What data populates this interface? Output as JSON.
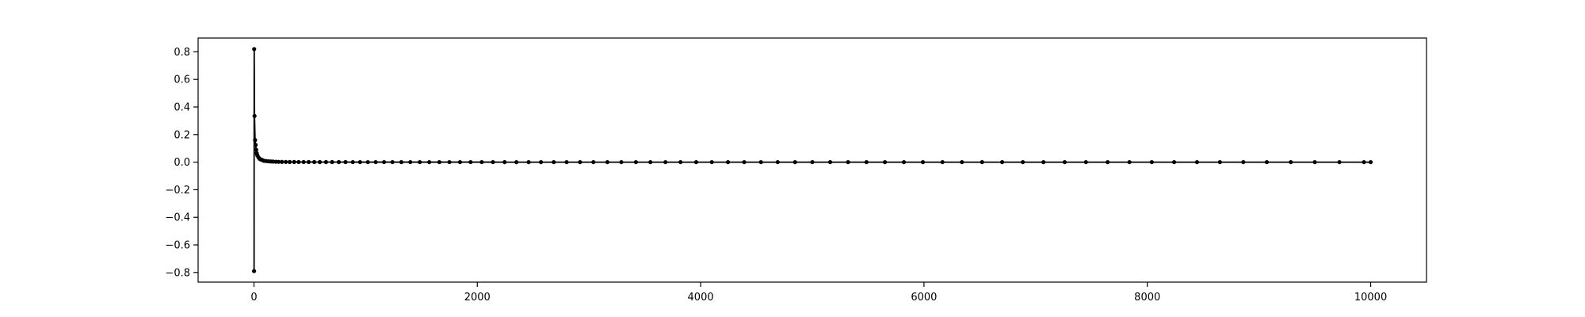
{
  "chart_data": {
    "type": "line",
    "title": "",
    "xlabel": "",
    "ylabel": "",
    "xlim": [
      -500,
      10500
    ],
    "ylim": [
      -0.87,
      0.9
    ],
    "grid": false,
    "x_ticks": [
      0,
      2000,
      4000,
      6000,
      8000,
      10000
    ],
    "x_tick_labels": [
      "0",
      "2000",
      "4000",
      "6000",
      "8000",
      "10000"
    ],
    "y_ticks": [
      -0.8,
      -0.6,
      -0.4,
      -0.2,
      0.0,
      0.2,
      0.4,
      0.6,
      0.8
    ],
    "y_tick_labels": [
      "−0.8",
      "−0.6",
      "−0.4",
      "−0.2",
      "0.0",
      "0.2",
      "0.4",
      "0.6",
      "0.8"
    ],
    "colors": {
      "series": "#000000",
      "axes": "#000000",
      "background": "#ffffff"
    },
    "series": [
      {
        "x": [
          1,
          2,
          5,
          10,
          15,
          20,
          25,
          30,
          40,
          50,
          60,
          75,
          90,
          110,
          130,
          150,
          170,
          195,
          220,
          250,
          285,
          320,
          360,
          400,
          445,
          490,
          540,
          590,
          645,
          700,
          760,
          820,
          885,
          950,
          1020,
          1090,
          1165,
          1240,
          1320,
          1400,
          1485,
          1570,
          1660,
          1750,
          1845,
          1940,
          2040,
          2140,
          2245,
          2350,
          2460,
          2570,
          2685,
          2800,
          2920,
          3040,
          3165,
          3290,
          3420,
          3550,
          3685,
          3820,
          3960,
          4100,
          4245,
          4390,
          4540,
          4690,
          4845,
          5000,
          5160,
          5320,
          5485,
          5650,
          5820,
          5990,
          6165,
          6340,
          6520,
          6700,
          6885,
          7070,
          7260,
          7450,
          7645,
          7840,
          8040,
          8240,
          8445,
          8650,
          8860,
          9070,
          9285,
          9500,
          9720,
          9940,
          10000
        ],
        "y": [
          -0.79,
          0.82,
          0.335,
          0.16,
          0.125,
          0.09,
          0.065,
          0.05,
          0.035,
          0.025,
          0.02,
          0.015,
          0.01,
          0.008,
          0.006,
          0.005,
          0.004,
          0.003,
          0.0025,
          0.002,
          0.0017,
          0.0015,
          0.0013,
          0.0011,
          0.001,
          0.0009,
          0.0008,
          0.0007,
          0.0006,
          0.0006,
          0.0005,
          0.0005,
          0.0004,
          0.0004,
          0.0004,
          0.0003,
          0.0003,
          0.0003,
          0.0003,
          0.0003,
          0.0002,
          0.0002,
          0.0002,
          0.0002,
          0.0002,
          0.0002,
          0.0002,
          0.0002,
          0.0001,
          0.0001,
          0.0001,
          0.0001,
          0.0001,
          0.0001,
          0.0001,
          0.0001,
          0.0001,
          0.0001,
          0.0001,
          0.0001,
          0.0001,
          0.0001,
          0.0001,
          0.0001,
          0.0001,
          0.0001,
          0.0001,
          0.0001,
          0.0001,
          0.0001,
          0.0001,
          0.0001,
          0.0001,
          0.0001,
          0.0001,
          0.0001,
          0.0001,
          0.0001,
          0.0001,
          0.0001,
          0.0001,
          0.0001,
          0.0001,
          0.0001,
          0.0001,
          0.0001,
          0.0001,
          0.0001,
          0.0001,
          0.0001,
          0.0001,
          0.0001,
          0.0001,
          0.0001,
          0.0001,
          0.0001,
          0.0001
        ]
      }
    ]
  }
}
